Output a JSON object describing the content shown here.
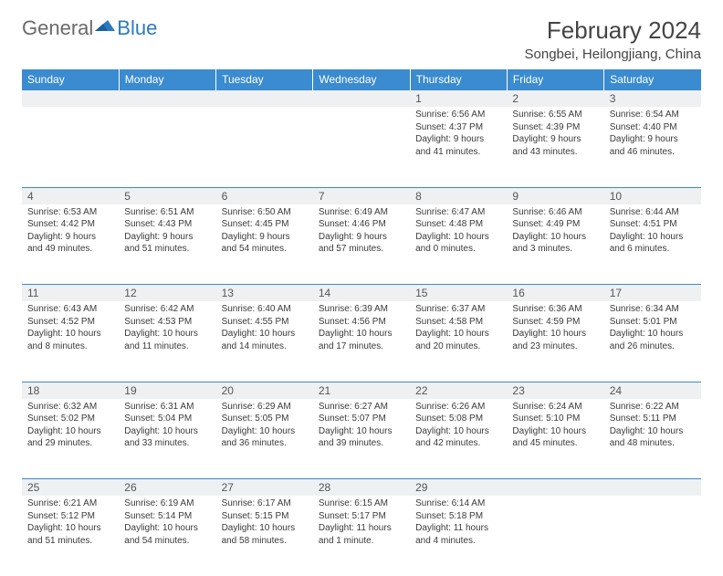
{
  "logo": {
    "general": "General",
    "blue": "Blue"
  },
  "title": "February 2024",
  "location": "Songbei, Heilongjiang, China",
  "dayHeaders": [
    "Sunday",
    "Monday",
    "Tuesday",
    "Wednesday",
    "Thursday",
    "Friday",
    "Saturday"
  ],
  "colors": {
    "headerBg": "#3a8bcf",
    "headerText": "#ffffff",
    "dayNumBg": "#eef0f2",
    "borderColor": "#3a8bcf",
    "logoGeneral": "#6a6a6a",
    "logoBlue": "#2a7ac0",
    "bodyText": "#3a3a3a"
  },
  "weeks": [
    [
      null,
      null,
      null,
      null,
      {
        "n": "1",
        "sr": "Sunrise: 6:56 AM",
        "ss": "Sunset: 4:37 PM",
        "dl1": "Daylight: 9 hours",
        "dl2": "and 41 minutes."
      },
      {
        "n": "2",
        "sr": "Sunrise: 6:55 AM",
        "ss": "Sunset: 4:39 PM",
        "dl1": "Daylight: 9 hours",
        "dl2": "and 43 minutes."
      },
      {
        "n": "3",
        "sr": "Sunrise: 6:54 AM",
        "ss": "Sunset: 4:40 PM",
        "dl1": "Daylight: 9 hours",
        "dl2": "and 46 minutes."
      }
    ],
    [
      {
        "n": "4",
        "sr": "Sunrise: 6:53 AM",
        "ss": "Sunset: 4:42 PM",
        "dl1": "Daylight: 9 hours",
        "dl2": "and 49 minutes."
      },
      {
        "n": "5",
        "sr": "Sunrise: 6:51 AM",
        "ss": "Sunset: 4:43 PM",
        "dl1": "Daylight: 9 hours",
        "dl2": "and 51 minutes."
      },
      {
        "n": "6",
        "sr": "Sunrise: 6:50 AM",
        "ss": "Sunset: 4:45 PM",
        "dl1": "Daylight: 9 hours",
        "dl2": "and 54 minutes."
      },
      {
        "n": "7",
        "sr": "Sunrise: 6:49 AM",
        "ss": "Sunset: 4:46 PM",
        "dl1": "Daylight: 9 hours",
        "dl2": "and 57 minutes."
      },
      {
        "n": "8",
        "sr": "Sunrise: 6:47 AM",
        "ss": "Sunset: 4:48 PM",
        "dl1": "Daylight: 10 hours",
        "dl2": "and 0 minutes."
      },
      {
        "n": "9",
        "sr": "Sunrise: 6:46 AM",
        "ss": "Sunset: 4:49 PM",
        "dl1": "Daylight: 10 hours",
        "dl2": "and 3 minutes."
      },
      {
        "n": "10",
        "sr": "Sunrise: 6:44 AM",
        "ss": "Sunset: 4:51 PM",
        "dl1": "Daylight: 10 hours",
        "dl2": "and 6 minutes."
      }
    ],
    [
      {
        "n": "11",
        "sr": "Sunrise: 6:43 AM",
        "ss": "Sunset: 4:52 PM",
        "dl1": "Daylight: 10 hours",
        "dl2": "and 8 minutes."
      },
      {
        "n": "12",
        "sr": "Sunrise: 6:42 AM",
        "ss": "Sunset: 4:53 PM",
        "dl1": "Daylight: 10 hours",
        "dl2": "and 11 minutes."
      },
      {
        "n": "13",
        "sr": "Sunrise: 6:40 AM",
        "ss": "Sunset: 4:55 PM",
        "dl1": "Daylight: 10 hours",
        "dl2": "and 14 minutes."
      },
      {
        "n": "14",
        "sr": "Sunrise: 6:39 AM",
        "ss": "Sunset: 4:56 PM",
        "dl1": "Daylight: 10 hours",
        "dl2": "and 17 minutes."
      },
      {
        "n": "15",
        "sr": "Sunrise: 6:37 AM",
        "ss": "Sunset: 4:58 PM",
        "dl1": "Daylight: 10 hours",
        "dl2": "and 20 minutes."
      },
      {
        "n": "16",
        "sr": "Sunrise: 6:36 AM",
        "ss": "Sunset: 4:59 PM",
        "dl1": "Daylight: 10 hours",
        "dl2": "and 23 minutes."
      },
      {
        "n": "17",
        "sr": "Sunrise: 6:34 AM",
        "ss": "Sunset: 5:01 PM",
        "dl1": "Daylight: 10 hours",
        "dl2": "and 26 minutes."
      }
    ],
    [
      {
        "n": "18",
        "sr": "Sunrise: 6:32 AM",
        "ss": "Sunset: 5:02 PM",
        "dl1": "Daylight: 10 hours",
        "dl2": "and 29 minutes."
      },
      {
        "n": "19",
        "sr": "Sunrise: 6:31 AM",
        "ss": "Sunset: 5:04 PM",
        "dl1": "Daylight: 10 hours",
        "dl2": "and 33 minutes."
      },
      {
        "n": "20",
        "sr": "Sunrise: 6:29 AM",
        "ss": "Sunset: 5:05 PM",
        "dl1": "Daylight: 10 hours",
        "dl2": "and 36 minutes."
      },
      {
        "n": "21",
        "sr": "Sunrise: 6:27 AM",
        "ss": "Sunset: 5:07 PM",
        "dl1": "Daylight: 10 hours",
        "dl2": "and 39 minutes."
      },
      {
        "n": "22",
        "sr": "Sunrise: 6:26 AM",
        "ss": "Sunset: 5:08 PM",
        "dl1": "Daylight: 10 hours",
        "dl2": "and 42 minutes."
      },
      {
        "n": "23",
        "sr": "Sunrise: 6:24 AM",
        "ss": "Sunset: 5:10 PM",
        "dl1": "Daylight: 10 hours",
        "dl2": "and 45 minutes."
      },
      {
        "n": "24",
        "sr": "Sunrise: 6:22 AM",
        "ss": "Sunset: 5:11 PM",
        "dl1": "Daylight: 10 hours",
        "dl2": "and 48 minutes."
      }
    ],
    [
      {
        "n": "25",
        "sr": "Sunrise: 6:21 AM",
        "ss": "Sunset: 5:12 PM",
        "dl1": "Daylight: 10 hours",
        "dl2": "and 51 minutes."
      },
      {
        "n": "26",
        "sr": "Sunrise: 6:19 AM",
        "ss": "Sunset: 5:14 PM",
        "dl1": "Daylight: 10 hours",
        "dl2": "and 54 minutes."
      },
      {
        "n": "27",
        "sr": "Sunrise: 6:17 AM",
        "ss": "Sunset: 5:15 PM",
        "dl1": "Daylight: 10 hours",
        "dl2": "and 58 minutes."
      },
      {
        "n": "28",
        "sr": "Sunrise: 6:15 AM",
        "ss": "Sunset: 5:17 PM",
        "dl1": "Daylight: 11 hours",
        "dl2": "and 1 minute."
      },
      {
        "n": "29",
        "sr": "Sunrise: 6:14 AM",
        "ss": "Sunset: 5:18 PM",
        "dl1": "Daylight: 11 hours",
        "dl2": "and 4 minutes."
      },
      null,
      null
    ]
  ]
}
